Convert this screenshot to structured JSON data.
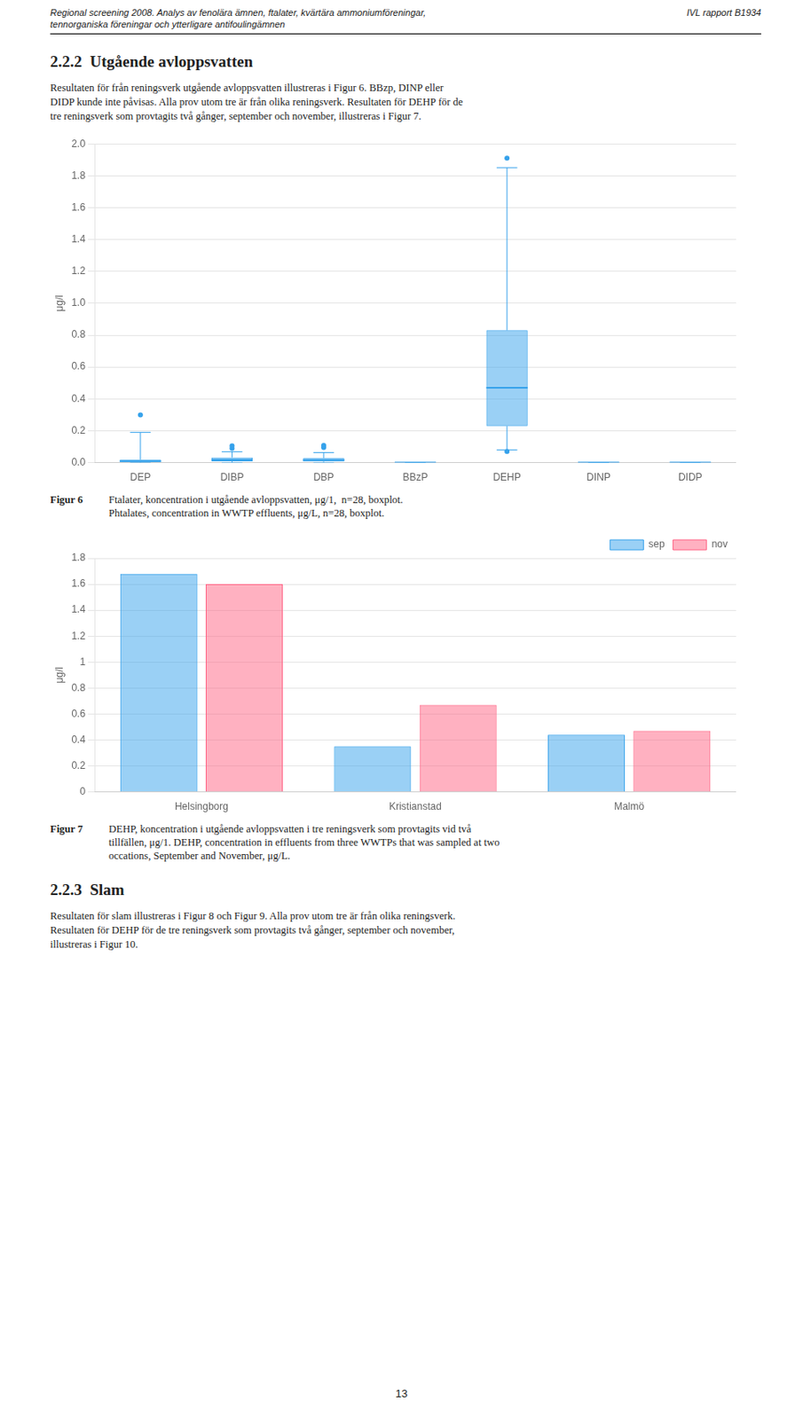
{
  "header_left": [
    "Regional screening 2008. Analys av fenolära ämnen, ftalater, kvärtära ammoniumföreningar,",
    "tennorganiska föreningar och ytterligare antifoulingämnen"
  ],
  "header_right": "IVL rapport B1934",
  "sections": [
    {
      "title": "2.2.2  Utgående avloppsvatten",
      "lines": [
        "Resultaten för från reningsverk utgående avloppsvatten illustreras i Figur 6. BBzp, DINP eller",
        "DIDP kunde inte påvisas. Alla prov utom tre är från olika reningsverk. Resultaten för DEHP för de",
        "tre reningsverk som provtagits två gånger, september och november, illustreras i Figur 7."
      ]
    },
    {
      "title": "2.2.3  Slam",
      "lines": [
        "Resultaten för slam illustreras i Figur 8 och Figur 9. Alla prov utom tre är från olika reningsverk.",
        "Resultaten för DEHP för de tre reningsverk som provtagits två gånger, september och november,",
        "illustreras i Figur 10."
      ]
    }
  ],
  "page_number": "13",
  "chart_data": [
    {
      "type": "boxplot",
      "title": "Figur 6",
      "subtitle": [
        "Ftalater, koncentration i utgående avloppsvatten, μg/1,  n=28, boxplot.",
        "Phtalates, concentration in WWTP effluents, μg/L, n=28, boxplot."
      ],
      "ylabel": "μg/l",
      "categories": [
        "DEP",
        "DIBP",
        "DBP",
        "BBzP",
        "DEHP",
        "DINP",
        "DIDP"
      ],
      "values": [
        {
          "q1": 0.005,
          "median": 0.01,
          "q3": 0.018,
          "whislo": 0.0,
          "whishi": 0.19,
          "fliers": [
            0.3
          ]
        },
        {
          "q1": 0.008,
          "median": 0.018,
          "q3": 0.032,
          "whislo": 0.0,
          "whishi": 0.068,
          "fliers": [
            0.09,
            0.105
          ]
        },
        {
          "q1": 0.007,
          "median": 0.016,
          "q3": 0.028,
          "whislo": 0.0,
          "whishi": 0.063,
          "fliers": [
            0.095,
            0.108
          ]
        },
        {
          "q1": 0.0,
          "median": 0.0,
          "q3": 0.0,
          "whislo": 0.0,
          "whishi": 0.0,
          "fliers": []
        },
        {
          "q1": 0.23,
          "median": 0.47,
          "q3": 0.83,
          "whislo": 0.08,
          "whishi": 1.85,
          "fliers": [
            1.91,
            0.07
          ]
        },
        {
          "q1": 0.0,
          "median": 0.0,
          "q3": 0.0,
          "whislo": 0.0,
          "whishi": 0.0,
          "fliers": []
        },
        {
          "q1": 0.0,
          "median": 0.0,
          "q3": 0.0,
          "whislo": 0.0,
          "whishi": 0.0,
          "fliers": []
        }
      ],
      "ylim": [
        0,
        2.0
      ],
      "yticks": [
        {
          "value": 0,
          "label": "0.0"
        },
        0.2,
        0.4,
        0.6,
        0.8,
        {
          "value": 1,
          "label": "1.0"
        },
        1.2,
        1.4,
        1.6,
        1.8,
        {
          "value": 2,
          "label": "2.0"
        }
      ],
      "grid": true
    },
    {
      "type": "bar",
      "title": "Figur 7",
      "subtitle": [
        "DEHP, koncentration i utgående avloppsvatten i tre reningsverk som provtagits vid två",
        "tillfällen, μg/1. DEHP, concentration in effluents from three WWTPs that was sampled at two",
        "occations, September and November, μg/L."
      ],
      "ylabel": "μg/l",
      "categories": [
        "Helsingborg",
        "Kristianstad",
        "Malmö"
      ],
      "series": [
        {
          "name": "sep",
          "values": [
            1.68,
            0.35,
            0.44
          ]
        },
        {
          "name": "nov",
          "values": [
            1.6,
            0.67,
            0.47
          ]
        }
      ],
      "ylim": [
        0,
        1.8
      ],
      "yticks": [
        0,
        0.2,
        0.4,
        0.6,
        0.8,
        1,
        1.2,
        1.4,
        1.6,
        1.8
      ],
      "grid": true,
      "legend": "upper right"
    }
  ]
}
